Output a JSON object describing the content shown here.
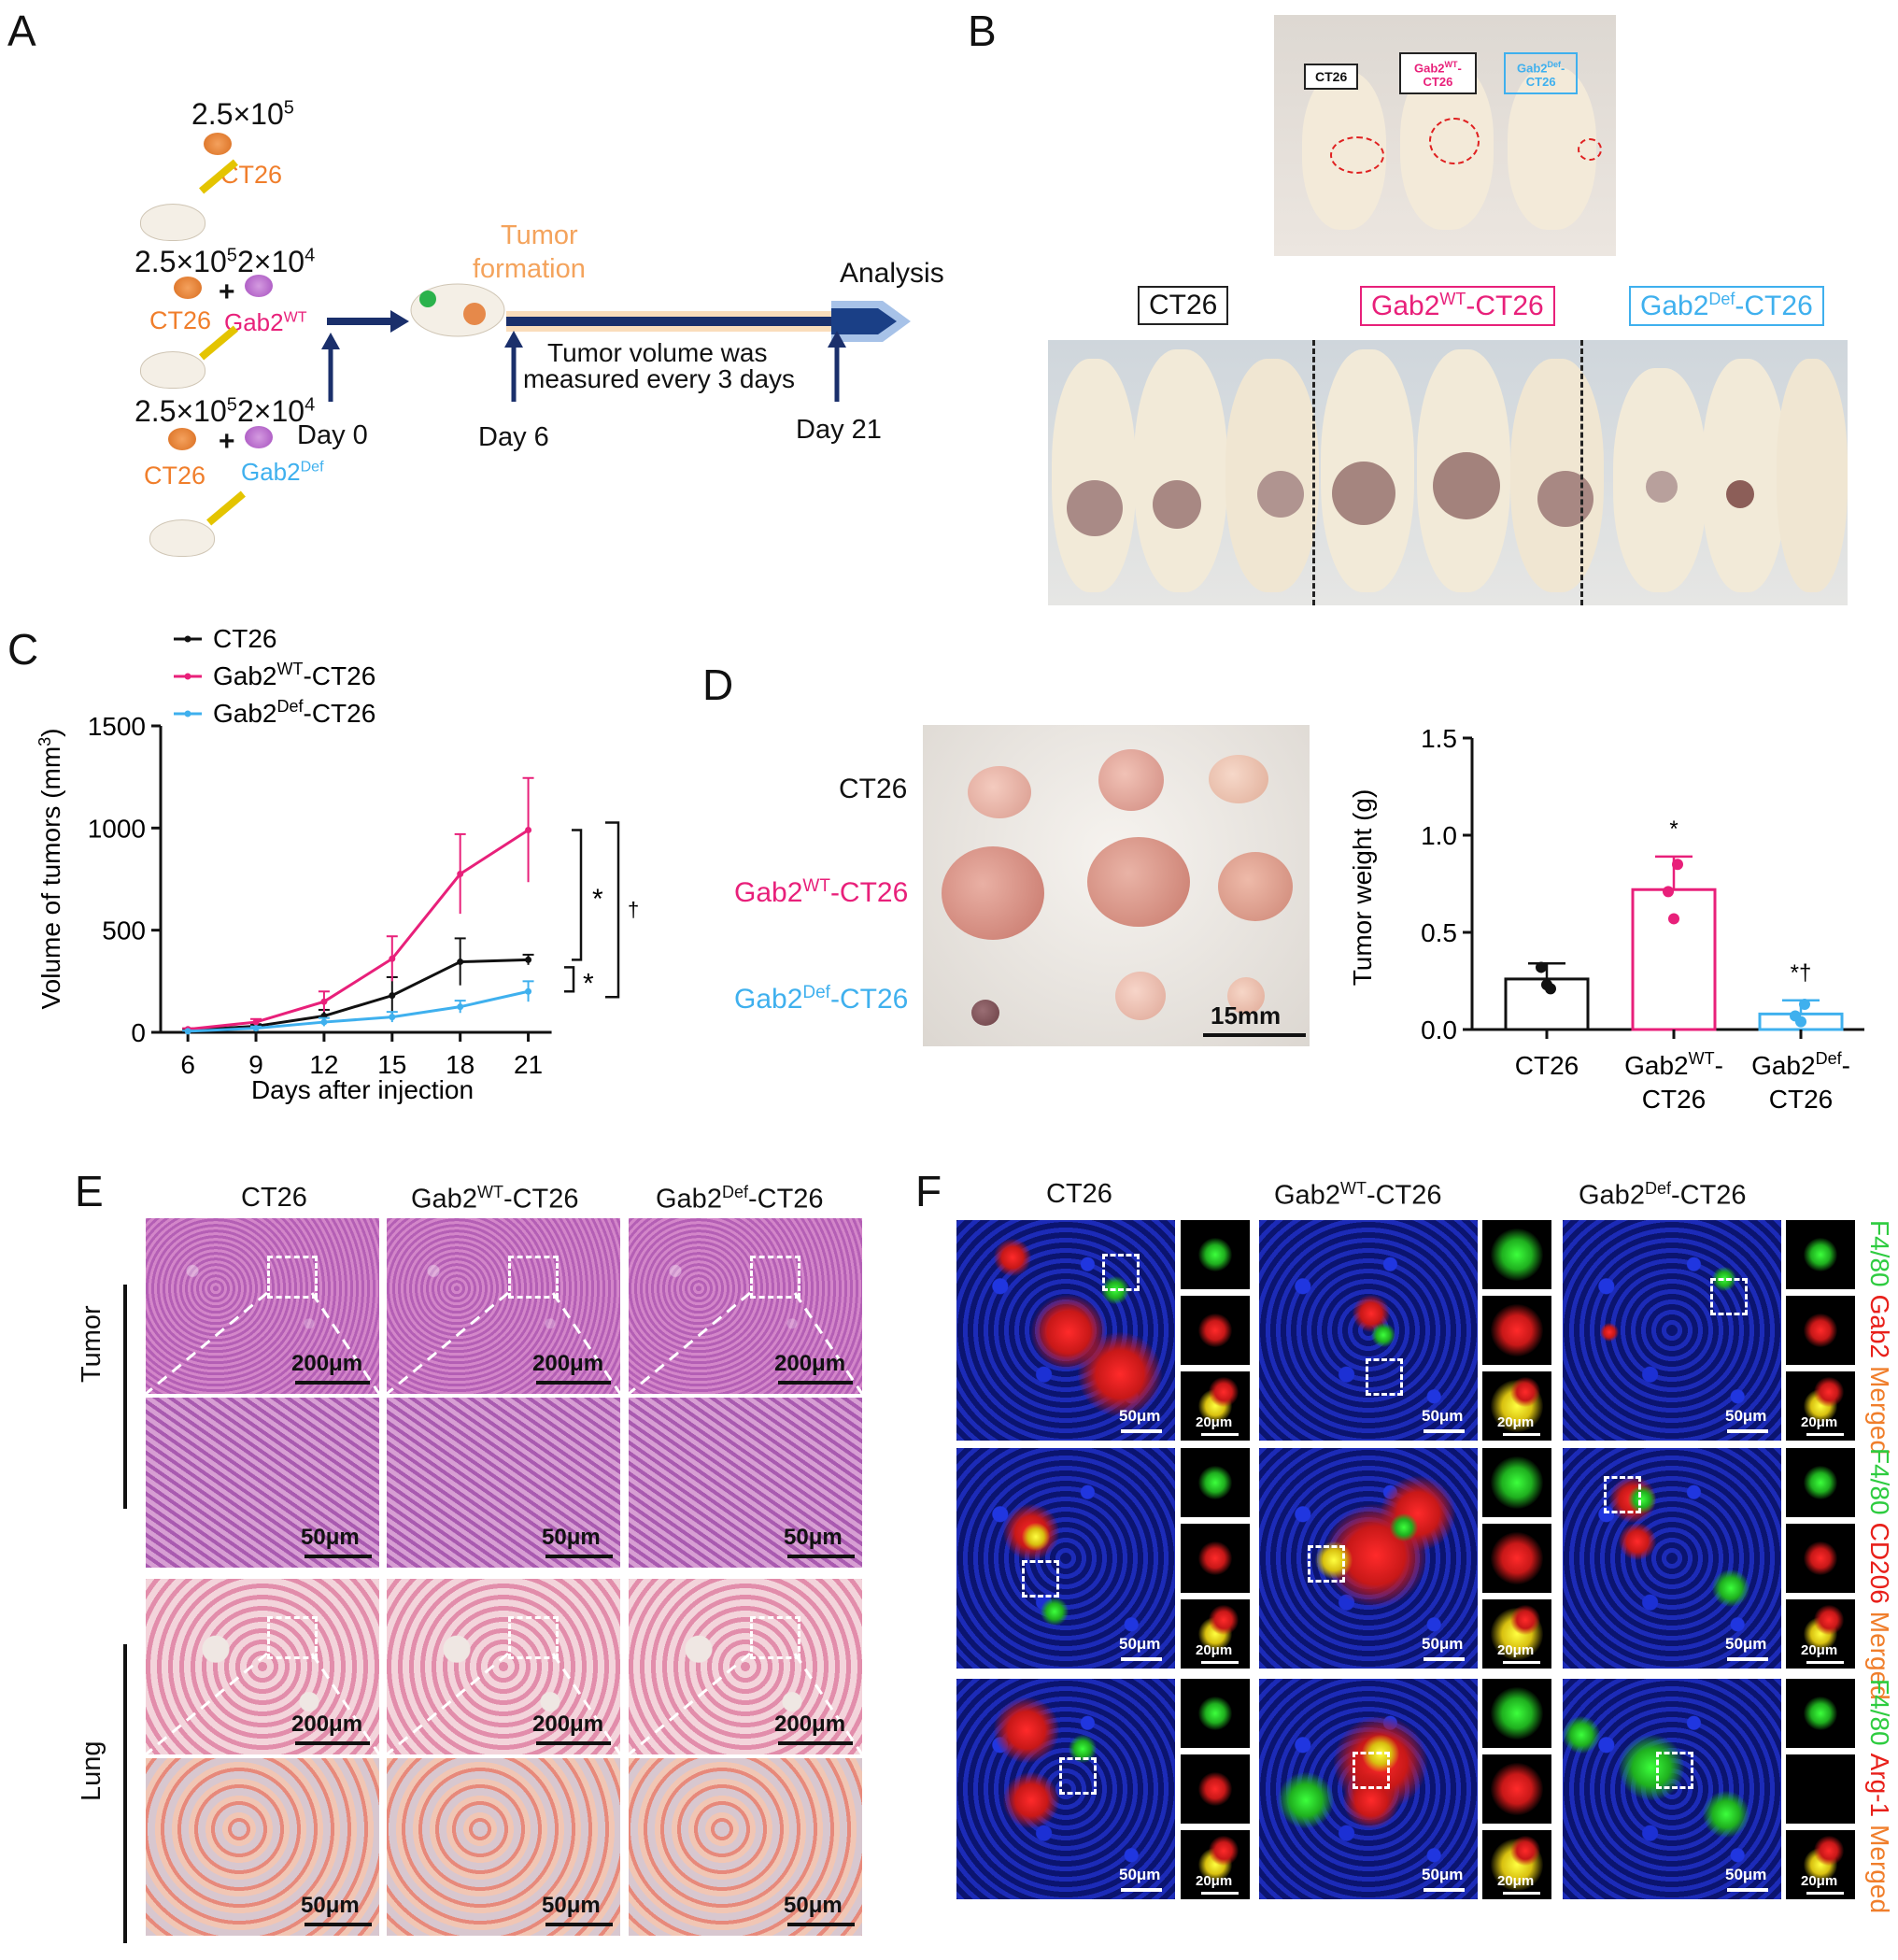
{
  "panels": {
    "A": "A",
    "B": "B",
    "C": "C",
    "D": "D",
    "E": "E",
    "F": "F"
  },
  "panelA": {
    "dose1": "2.5×10",
    "exp5": "5",
    "exp4": "4",
    "dose2": "2×10",
    "ct26": "CT26",
    "plus": "+",
    "gab2": "Gab2",
    "wt": "WT",
    "def": "Def",
    "tumor": "Tumor",
    "formation": "formation",
    "analysis": "Analysis",
    "measure1": "Tumor volume was",
    "measure2": "measured every 3 days",
    "day0": "Day 0",
    "day6": "Day 6",
    "day21": "Day 21"
  },
  "panelB": {
    "top_ct26": "CT26",
    "top_wt": "Gab2",
    "top_wt_sup": "WT",
    "top_wt_suffix": "-",
    "top_wt2": "CT26",
    "top_def": "Gab2",
    "top_def_sup": "Def",
    "top_def_suffix": "-",
    "top_def2": "CT26",
    "label_ct26": "CT26",
    "label_wt_pre": "Gab2",
    "label_wt_sup": "WT",
    "label_wt_post": "-CT26",
    "label_def_pre": "Gab2",
    "label_def_sup": "Def",
    "label_def_post": "-CT26"
  },
  "colors": {
    "ct26": "#111111",
    "wt": "#e8207a",
    "def": "#3fb0ee",
    "orange": "#f07e2b",
    "navy": "#1a2f6b"
  },
  "chart_data": [
    {
      "type": "line",
      "ylabel": "Volume of tumors (mm3)",
      "ylabel_pre": "Volume of tumors (mm",
      "ylabel_sup": "3",
      "ylabel_post": ")",
      "xlabel": "Days after injection",
      "x": [
        6,
        9,
        12,
        15,
        18,
        21
      ],
      "ylim": [
        0,
        1500
      ],
      "yticks": [
        0,
        500,
        1000,
        1500
      ],
      "series": [
        {
          "name": "CT26",
          "values": [
            10,
            30,
            80,
            180,
            345,
            355
          ],
          "err": [
            5,
            10,
            30,
            90,
            115,
            25
          ]
        },
        {
          "name": "Gab2WT-CT26",
          "name_pre": "Gab2",
          "name_sup": "WT",
          "name_post": "-CT26",
          "values": [
            15,
            50,
            150,
            360,
            775,
            990
          ],
          "err": [
            5,
            15,
            50,
            110,
            195,
            255
          ]
        },
        {
          "name": "Gab2Def-CT26",
          "name_pre": "Gab2",
          "name_sup": "Def",
          "name_post": "-CT26",
          "values": [
            5,
            20,
            50,
            75,
            125,
            200
          ],
          "err": [
            3,
            8,
            20,
            25,
            30,
            50
          ]
        }
      ],
      "annotations": [
        "*",
        "*",
        "†"
      ]
    },
    {
      "type": "bar",
      "ylabel": "Tumor weight (g)",
      "ylim": [
        0,
        1.5
      ],
      "yticks": [
        "0.0",
        "0.5",
        "1.0",
        "1.5"
      ],
      "categories": [
        "CT26",
        "Gab2WT-CT26",
        "Gab2Def-CT26"
      ],
      "cat_lines": [
        [
          "CT26"
        ],
        [
          "Gab2",
          "WT",
          "-",
          "CT26"
        ],
        [
          "Gab2",
          "Def",
          "-",
          "CT26"
        ]
      ],
      "values": [
        0.26,
        0.72,
        0.08
      ],
      "err": [
        0.08,
        0.17,
        0.07
      ],
      "points": [
        [
          0.23,
          0.32,
          0.21
        ],
        [
          0.57,
          0.71,
          0.85
        ],
        [
          0.04,
          0.07,
          0.13
        ]
      ],
      "annotations": [
        "",
        "*",
        "*†"
      ]
    }
  ],
  "panelD": {
    "row_ct26": "CT26",
    "row_wt_pre": "Gab2",
    "row_wt_sup": "WT",
    "row_wt_post": "-CT26",
    "row_def_pre": "Gab2",
    "row_def_sup": "Def",
    "row_def_post": "-CT26",
    "scale": "15mm"
  },
  "panelE": {
    "col_ct26": "CT26",
    "col_wt_pre": "Gab2",
    "col_wt_sup": "WT",
    "col_wt_post": "-CT26",
    "col_def_pre": "Gab2",
    "col_def_sup": "Def",
    "col_def_post": "-CT26",
    "row_tumor": "Tumor",
    "row_lung": "Lung",
    "scale_200": "200μm",
    "scale_50": "50μm"
  },
  "panelF": {
    "col_ct26": "CT26",
    "col_wt_pre": "Gab2",
    "col_wt_sup": "WT",
    "col_wt_post": "-CT26",
    "col_def_pre": "Gab2",
    "col_def_sup": "Def",
    "col_def_post": "-CT26",
    "scale_50": "50μm",
    "scale_20": "20μm",
    "row1": [
      "F4/80",
      "Gab2",
      "Merged"
    ],
    "row2": [
      "F4/80",
      "CD206",
      "Merged"
    ],
    "row3": [
      "F4/80",
      "Arg-1",
      "Merged"
    ]
  }
}
